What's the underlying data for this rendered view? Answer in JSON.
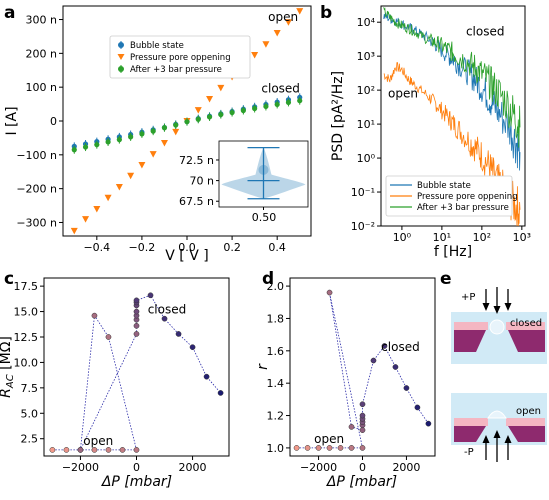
{
  "colors": {
    "blue": "#1f77b4",
    "orange": "#ff7f0e",
    "green": "#2ca02c",
    "open_marker": "#d9534f",
    "closed_marker": "#1a1a70",
    "pink": "#f4b6c2",
    "magenta": "#8e2a6e",
    "light_blue": "#c9e6f5"
  },
  "panel_labels": {
    "a": "a",
    "b": "b",
    "c": "c",
    "d": "d",
    "e": "e"
  },
  "chart_data": [
    {
      "panel": "a",
      "type": "scatter",
      "xlabel": "V [ V ]",
      "ylabel": "I [A]",
      "xlim": [
        -0.55,
        0.55
      ],
      "ylim": [
        -340,
        340
      ],
      "xticks": [
        -0.4,
        -0.2,
        0.0,
        0.2,
        0.4
      ],
      "xtick_labels": [
        "−0.4",
        "−0.2",
        "0.0",
        "0.2",
        "0.4"
      ],
      "yticks": [
        -300,
        -200,
        -100,
        0,
        100,
        200,
        300
      ],
      "ytick_labels": [
        "−300 n",
        "−200 n",
        "−100 n",
        "0",
        "100 n",
        "200 n",
        "300 n"
      ],
      "legend_position": "upper-left",
      "annotations": [
        {
          "text": "open",
          "x": 0.36,
          "y": 295
        },
        {
          "text": "closed",
          "x": 0.33,
          "y": 85
        }
      ],
      "series": [
        {
          "name": "Bubble state",
          "color_key": "blue",
          "marker": "circle",
          "x": [
            -0.5,
            -0.45,
            -0.4,
            -0.35,
            -0.3,
            -0.25,
            -0.2,
            -0.15,
            -0.1,
            -0.05,
            0.0,
            0.05,
            0.1,
            0.15,
            0.2,
            0.25,
            0.3,
            0.35,
            0.4,
            0.45,
            0.5
          ],
          "y": [
            -75,
            -68,
            -61,
            -54,
            -47,
            -40,
            -33,
            -26,
            -19,
            -10,
            -2,
            7,
            14,
            21,
            28,
            35,
            42,
            49,
            56,
            63,
            70
          ]
        },
        {
          "name": "Pressure pore oppening",
          "color_key": "orange",
          "marker": "triangle-down",
          "x": [
            -0.5,
            -0.45,
            -0.4,
            -0.35,
            -0.3,
            -0.25,
            -0.2,
            -0.15,
            -0.1,
            -0.05,
            0.0,
            0.05,
            0.1,
            0.15,
            0.2,
            0.25,
            0.3,
            0.35,
            0.4,
            0.45,
            0.5
          ],
          "y": [
            -325,
            -290,
            -260,
            -227,
            -195,
            -162,
            -130,
            -98,
            -65,
            -32,
            0,
            32,
            65,
            98,
            130,
            162,
            195,
            227,
            260,
            292,
            325
          ]
        },
        {
          "name": "After +3 bar pressure",
          "color_key": "green",
          "marker": "circle",
          "x": [
            -0.5,
            -0.45,
            -0.4,
            -0.35,
            -0.3,
            -0.25,
            -0.2,
            -0.15,
            -0.1,
            -0.05,
            0.0,
            0.05,
            0.1,
            0.15,
            0.2,
            0.25,
            0.3,
            0.35,
            0.4,
            0.45,
            0.5
          ],
          "y": [
            -85,
            -77,
            -70,
            -62,
            -55,
            -47,
            -38,
            -30,
            -20,
            -12,
            -2,
            5,
            12,
            19,
            25,
            31,
            37,
            43,
            49,
            55,
            60
          ]
        }
      ],
      "inset": {
        "type": "violin",
        "xtick_labels": [
          "0.50"
        ],
        "yticks": [
          67.5,
          70,
          72.5
        ],
        "ytick_labels": [
          "67.5 n",
          "70 n",
          "72.5 n"
        ],
        "ylim": [
          66.8,
          74.8
        ],
        "min": 67.8,
        "max": 74.0,
        "median": 70.0
      }
    },
    {
      "panel": "b",
      "type": "line",
      "xlabel": "f [Hz]",
      "ylabel": "PSD [pA²/Hz]",
      "xscale": "log",
      "yscale": "log",
      "xlim": [
        0.3,
        1200
      ],
      "ylim": [
        0.01,
        30000
      ],
      "xticks": [
        1,
        10,
        100,
        1000
      ],
      "xtick_labels": [
        "10⁰",
        "10¹",
        "10²",
        "10³"
      ],
      "yticks": [
        0.01,
        0.1,
        1,
        10,
        100,
        1000,
        10000
      ],
      "ytick_labels": [
        "10⁻²",
        "10⁻¹",
        "10⁰",
        "10¹",
        "10²",
        "10³",
        "10⁴"
      ],
      "legend_position": "lower-left",
      "annotations": [
        {
          "text": "closed",
          "x": 40,
          "y": 4000
        },
        {
          "text": "open",
          "x": 0.45,
          "y": 60
        }
      ],
      "series": [
        {
          "name": "Bubble state",
          "color_key": "blue",
          "x": [
            0.35,
            0.5,
            0.7,
            1,
            1.5,
            2,
            3,
            5,
            7,
            10,
            15,
            20,
            30,
            50,
            70,
            100,
            150,
            200,
            300,
            500,
            700,
            900
          ],
          "y": [
            15000,
            13000,
            11000,
            9000,
            7000,
            6000,
            4500,
            3000,
            2200,
            1500,
            1000,
            800,
            500,
            300,
            200,
            120,
            60,
            35,
            18,
            8,
            3,
            1.5
          ]
        },
        {
          "name": "Pressure pore oppening",
          "color_key": "orange",
          "x": [
            0.35,
            0.5,
            0.7,
            1,
            1.5,
            2,
            3,
            5,
            7,
            10,
            15,
            20,
            30,
            50,
            70,
            100,
            150,
            200,
            300,
            500,
            700,
            900
          ],
          "y": [
            300,
            200,
            500,
            400,
            200,
            150,
            100,
            60,
            40,
            25,
            15,
            10,
            6,
            3,
            2,
            1.2,
            0.6,
            0.3,
            0.15,
            0.06,
            0.04,
            0.03
          ]
        },
        {
          "name": "After +3 bar pressure",
          "color_key": "green",
          "x": [
            0.35,
            0.5,
            0.7,
            1,
            1.5,
            2,
            3,
            5,
            7,
            10,
            15,
            20,
            30,
            50,
            70,
            100,
            150,
            200,
            300,
            500,
            700,
            900
          ],
          "y": [
            20000,
            14000,
            10000,
            8000,
            6500,
            5500,
            4000,
            3000,
            2500,
            2000,
            1500,
            1200,
            900,
            600,
            450,
            300,
            180,
            120,
            70,
            30,
            15,
            8
          ]
        }
      ]
    },
    {
      "panel": "c",
      "type": "line",
      "xlabel": "ΔP [mbar]",
      "ylabel": "R_AC [MΩ]",
      "xlim": [
        -3300,
        3300
      ],
      "ylim": [
        0.8,
        18.3
      ],
      "xticks": [
        -2000,
        0,
        2000
      ],
      "xtick_labels": [
        "−2000",
        "0",
        "2000"
      ],
      "yticks": [
        2.5,
        5.0,
        7.5,
        10.0,
        12.5,
        15.0,
        17.5
      ],
      "ytick_labels": [
        "2.5",
        "5.0",
        "7.5",
        "10.0",
        "12.5",
        "15.0",
        "17.5"
      ],
      "annotations": [
        {
          "text": "closed",
          "x": 400,
          "y": 14.8
        },
        {
          "text": "open",
          "x": -1900,
          "y": 1.9
        }
      ],
      "points": {
        "x": [
          -3000,
          -2500,
          -2000,
          -1500,
          -1000,
          -500,
          0,
          -1000,
          -1500,
          -2000,
          0,
          0,
          0,
          0,
          0,
          0,
          0,
          0,
          500,
          1000,
          1500,
          2000,
          2500,
          3000
        ],
        "y": [
          1.4,
          1.4,
          1.4,
          1.4,
          1.4,
          1.4,
          1.4,
          12.5,
          14.6,
          1.4,
          12.8,
          13.6,
          14.2,
          14.6,
          15.0,
          15.6,
          15.9,
          16.1,
          16.6,
          14.3,
          12.8,
          11.5,
          8.6,
          7.0
        ]
      }
    },
    {
      "panel": "d",
      "type": "line",
      "xlabel": "ΔP [mbar]",
      "ylabel": "r",
      "xlim": [
        -3300,
        3300
      ],
      "ylim": [
        0.95,
        2.05
      ],
      "xticks": [
        -2000,
        0,
        2000
      ],
      "xtick_labels": [
        "−2000",
        "0",
        "2000"
      ],
      "yticks": [
        1.0,
        1.2,
        1.4,
        1.6,
        1.8,
        2.0
      ],
      "ytick_labels": [
        "1.0",
        "1.2",
        "1.4",
        "1.6",
        "1.8",
        "2.0"
      ],
      "annotations": [
        {
          "text": "closed",
          "x": 850,
          "y": 1.6
        },
        {
          "text": "open",
          "x": -2200,
          "y": 1.03
        }
      ],
      "points": {
        "x": [
          -3000,
          -2500,
          -2000,
          -1500,
          -1000,
          -500,
          0,
          -1500,
          -500,
          0,
          0,
          0,
          0,
          0,
          0,
          500,
          1000,
          1500,
          2000,
          2500,
          3000
        ],
        "y": [
          1.0,
          1.0,
          1.0,
          1.0,
          1.0,
          1.0,
          1.0,
          1.96,
          1.13,
          1.11,
          1.14,
          1.16,
          1.18,
          1.2,
          1.27,
          1.54,
          1.63,
          1.5,
          1.37,
          1.25,
          1.15
        ]
      }
    }
  ],
  "schematic": {
    "top_label": "+P",
    "top_state": "closed",
    "bottom_label": "-P",
    "bottom_state": "open"
  }
}
